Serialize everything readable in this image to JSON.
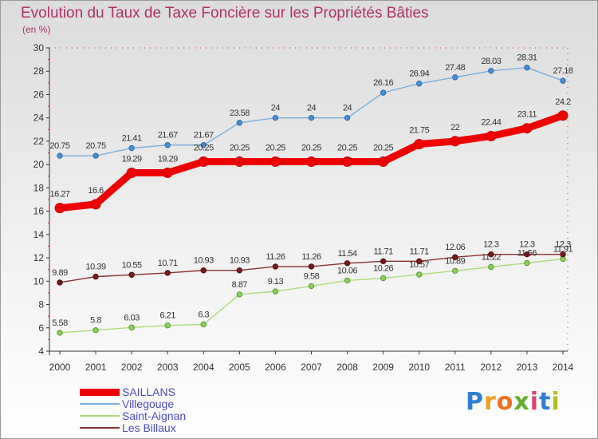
{
  "chart_data": {
    "type": "line",
    "title": "Evolution du Taux de Taxe Foncière sur les Propriétés Bâties",
    "ylabel": "(en %)",
    "xlabel": "",
    "ylim": [
      4,
      30
    ],
    "yticks": [
      "4",
      "6",
      "8",
      "10",
      "12",
      "14",
      "16",
      "18",
      "20",
      "22",
      "24",
      "26",
      "28",
      "30"
    ],
    "categories": [
      "2000",
      "2001",
      "2002",
      "2003",
      "2004",
      "2005",
      "2006",
      "2007",
      "2008",
      "2009",
      "2010",
      "2011",
      "2012",
      "2013",
      "2014"
    ],
    "series": [
      {
        "name": "SAILLANS",
        "color": "#ee0000",
        "values": [
          16.27,
          16.6,
          19.29,
          19.29,
          20.25,
          20.25,
          20.25,
          20.25,
          20.25,
          20.25,
          21.75,
          22,
          22.44,
          23.11,
          24.2
        ],
        "labels": [
          "16.27",
          "16.6",
          "19.29",
          "19.29",
          "20.25",
          "20.25",
          "20.25",
          "20.25",
          "20.25",
          "20.25",
          "21.75",
          "22",
          "22.44",
          "23.11",
          "24.2"
        ]
      },
      {
        "name": "Villegouge",
        "color": "#7aaedd",
        "values": [
          20.75,
          20.75,
          21.41,
          21.67,
          21.67,
          23.58,
          24,
          24,
          24,
          26.16,
          26.94,
          27.48,
          28.03,
          28.31,
          27.18
        ],
        "labels": [
          "20.75",
          "20.75",
          "21.41",
          "21.67",
          "21.67",
          "23.58",
          "24",
          "24",
          "24",
          "26.16",
          "26.94",
          "27.48",
          "28.03",
          "28.31",
          "27.18"
        ]
      },
      {
        "name": "Saint-Aignan",
        "color": "#a8dc78",
        "values": [
          5.58,
          5.8,
          6.03,
          6.21,
          6.3,
          8.87,
          9.13,
          9.58,
          10.06,
          10.26,
          10.57,
          10.89,
          11.22,
          11.56,
          11.91
        ],
        "labels": [
          "5.58",
          "5.8",
          "6.03",
          "6.21",
          "6.3",
          "8.87",
          "9.13",
          "9.58",
          "10.06",
          "10.26",
          "10.57",
          "10.89",
          "11.22",
          "11.56",
          "11.91"
        ]
      },
      {
        "name": "Les Billaux",
        "color": "#8a3030",
        "values": [
          9.89,
          10.39,
          10.55,
          10.71,
          10.93,
          10.93,
          11.26,
          11.26,
          11.54,
          11.71,
          11.71,
          12.06,
          12.3,
          12.3,
          12.3
        ],
        "labels": [
          "9.89",
          "10.39",
          "10.55",
          "10.71",
          "10.93",
          "10.93",
          "11.26",
          "11.26",
          "11.54",
          "11.71",
          "11.71",
          "12.06",
          "12.3",
          "12.3",
          "12.3"
        ]
      }
    ],
    "legend_position": "bottom-left",
    "grid": false
  },
  "logo": {
    "letters": [
      "P",
      "r",
      "o",
      "x",
      "i",
      "t",
      "i"
    ],
    "colors": [
      "#2e7fd0",
      "#f0a020",
      "#f07020",
      "#60b030",
      "#e04070",
      "#2e7fd0",
      "#b0c020"
    ]
  }
}
